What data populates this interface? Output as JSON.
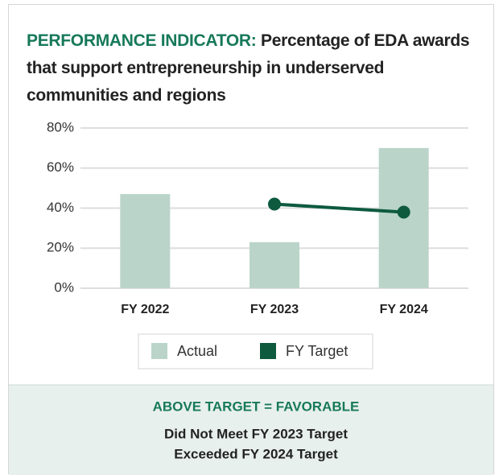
{
  "chart_data": {
    "type": "bar",
    "title": {
      "label": "PERFORMANCE INDICATOR:",
      "text": "Percentage of EDA awards that support entrepreneurship in underserved communities and regions"
    },
    "categories": [
      "FY 2022",
      "FY 2023",
      "FY 2024"
    ],
    "series": [
      {
        "name": "Actual",
        "type": "bar",
        "color": "#bad4c9",
        "values": [
          47,
          23,
          70
        ]
      },
      {
        "name": "FY Target",
        "type": "line",
        "color": "#0d5a3f",
        "values": [
          null,
          42,
          38
        ]
      }
    ],
    "ylim": [
      0,
      80
    ],
    "yticks": [
      {
        "value": 0,
        "label": "0%"
      },
      {
        "value": 20,
        "label": "20%"
      },
      {
        "value": 40,
        "label": "40%"
      },
      {
        "value": 60,
        "label": "60%"
      },
      {
        "value": 80,
        "label": "80%"
      }
    ],
    "grid": true,
    "legend": "bottom",
    "footer": {
      "heading": "ABOVE TARGET = FAVORABLE",
      "notes": [
        "Did Not Meet FY 2023 Target",
        "Exceeded FY 2024 Target"
      ]
    }
  }
}
